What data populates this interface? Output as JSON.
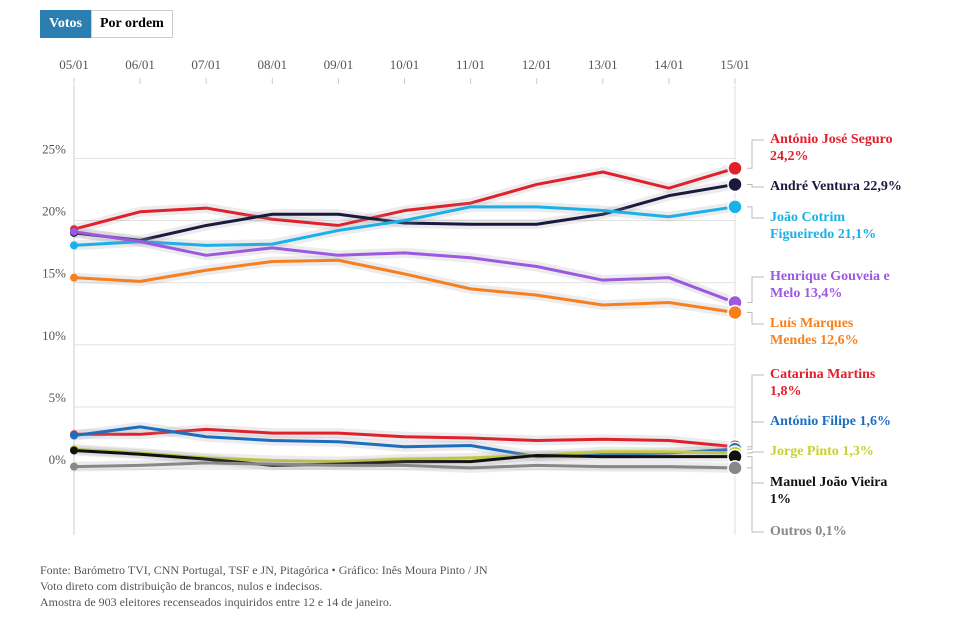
{
  "ui": {
    "buttons": [
      "Votos",
      "Por ordem"
    ]
  },
  "chart_data": {
    "type": "line",
    "categories": [
      "05/01",
      "06/01",
      "07/01",
      "08/01",
      "09/01",
      "10/01",
      "11/01",
      "12/01",
      "13/01",
      "14/01",
      "15/01"
    ],
    "ylim": [
      -5.3,
      30.9
    ],
    "yticks": [
      {
        "value": 0,
        "label": "0%"
      },
      {
        "value": 5,
        "label": "5%"
      },
      {
        "value": 10,
        "label": "10%"
      },
      {
        "value": 15,
        "label": "15%"
      },
      {
        "value": 20,
        "label": "20%"
      },
      {
        "value": 25,
        "label": "25%"
      }
    ],
    "grid": true,
    "series": [
      {
        "name": "António José Seguro",
        "color": "#e0212b",
        "values": [
          19.3,
          20.7,
          21.0,
          20.1,
          19.6,
          20.8,
          21.4,
          22.9,
          23.9,
          22.6,
          24.2
        ],
        "value_labels": [
          null,
          null,
          null,
          null,
          null,
          null,
          null,
          null,
          null,
          null,
          "24,2%"
        ]
      },
      {
        "name": "André Ventura",
        "color": "#1a1a3e",
        "values": [
          19.0,
          18.4,
          19.6,
          20.5,
          20.5,
          19.8,
          19.7,
          19.7,
          20.5,
          22.0,
          22.9
        ],
        "value_labels": [
          null,
          null,
          null,
          null,
          null,
          null,
          null,
          null,
          null,
          null,
          "22,9%"
        ]
      },
      {
        "name": "João Cotrim Figueiredo",
        "color": "#1ab0e8",
        "values": [
          18.0,
          18.3,
          18.0,
          18.1,
          19.2,
          20.0,
          21.1,
          21.1,
          20.8,
          20.3,
          21.1
        ],
        "value_labels": [
          null,
          null,
          null,
          null,
          null,
          null,
          null,
          null,
          null,
          null,
          "21,1%"
        ]
      },
      {
        "name": "Henrique Gouveia e Melo",
        "color": "#9b59e0",
        "values": [
          19.1,
          18.3,
          17.2,
          17.8,
          17.2,
          17.4,
          17.0,
          16.3,
          15.2,
          15.4,
          13.4
        ],
        "value_labels": [
          null,
          null,
          null,
          null,
          null,
          null,
          null,
          null,
          null,
          null,
          "13,4%"
        ]
      },
      {
        "name": "Luís Marques Mendes",
        "color": "#f7801e",
        "values": [
          15.4,
          15.1,
          16.0,
          16.7,
          16.8,
          15.7,
          14.5,
          14.0,
          13.2,
          13.4,
          12.6
        ],
        "value_labels": [
          null,
          null,
          null,
          null,
          null,
          null,
          null,
          null,
          null,
          null,
          "12,6%"
        ]
      },
      {
        "name": "Catarina Martins",
        "color": "#e0212b",
        "values": [
          2.8,
          2.8,
          3.2,
          2.9,
          2.9,
          2.6,
          2.5,
          2.3,
          2.4,
          2.3,
          1.8
        ],
        "value_labels": [
          null,
          null,
          null,
          null,
          null,
          null,
          null,
          null,
          null,
          null,
          "1,8%"
        ]
      },
      {
        "name": "António Filipe",
        "color": "#1e6ec0",
        "values": [
          2.7,
          3.4,
          2.6,
          2.3,
          2.2,
          1.8,
          1.9,
          1.0,
          1.2,
          1.3,
          1.6
        ],
        "value_labels": [
          null,
          null,
          null,
          null,
          null,
          null,
          null,
          null,
          null,
          null,
          "1,6%"
        ]
      },
      {
        "name": "Jorge Pinto",
        "color": "#c8d030",
        "values": [
          1.6,
          1.3,
          0.9,
          0.7,
          0.6,
          0.8,
          0.9,
          1.1,
          1.4,
          1.4,
          1.3
        ],
        "value_labels": [
          null,
          null,
          null,
          null,
          null,
          null,
          null,
          null,
          null,
          null,
          "1,3%"
        ]
      },
      {
        "name": "Manuel João Vieira",
        "color": "#111111",
        "values": [
          1.5,
          1.2,
          0.8,
          0.3,
          0.4,
          0.6,
          0.6,
          1.1,
          1.0,
          1.0,
          1.0
        ],
        "value_labels": [
          null,
          null,
          null,
          null,
          null,
          null,
          null,
          null,
          null,
          null,
          "1%"
        ]
      },
      {
        "name": "Outros",
        "color": "#888888",
        "values": [
          0.2,
          0.3,
          0.5,
          0.4,
          0.3,
          0.3,
          0.1,
          0.3,
          0.2,
          0.2,
          0.1
        ],
        "value_labels": [
          null,
          null,
          null,
          null,
          null,
          null,
          null,
          null,
          null,
          null,
          "0,1%"
        ]
      }
    ]
  },
  "footer": {
    "lines": [
      "Fonte: Barómetro TVI, CNN Portugal, TSF e JN, Pitagórica • Gráfico: Inês Moura Pinto / JN",
      "Voto direto com distribuição de brancos, nulos e indecisos.",
      "Amostra de 903 eleitores recenseados inquiridos entre 12 e 14 de janeiro."
    ]
  }
}
